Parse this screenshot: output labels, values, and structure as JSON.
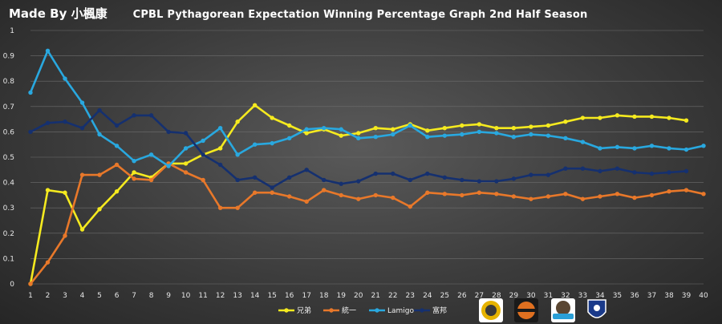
{
  "credit": "Made By 小楓康",
  "chart_data": {
    "type": "line",
    "title": "CPBL Pythagorean  Expectation Winning Percentage Graph 2nd Half Season",
    "xlabel": "",
    "ylabel": "",
    "x": [
      1,
      2,
      3,
      4,
      5,
      6,
      7,
      8,
      9,
      10,
      11,
      12,
      13,
      14,
      15,
      16,
      17,
      18,
      19,
      20,
      21,
      22,
      23,
      24,
      25,
      26,
      27,
      28,
      29,
      30,
      31,
      32,
      33,
      34,
      35,
      36,
      37,
      38,
      39,
      40
    ],
    "ylim": [
      0,
      1
    ],
    "yticks": [
      "0",
      "0.1",
      "0.2",
      "0.3",
      "0.4",
      "0.5",
      "0.6",
      "0.7",
      "0.8",
      "0.9",
      "1"
    ],
    "grid": true,
    "legend_position": "bottom",
    "series": [
      {
        "name": "兄弟",
        "color": "#f5ea1f",
        "values": [
          0,
          0.37,
          0.36,
          0.215,
          0.295,
          0.365,
          0.44,
          0.42,
          0.475,
          0.475,
          0.51,
          0.535,
          0.64,
          0.705,
          0.655,
          0.625,
          0.595,
          0.61,
          0.585,
          0.595,
          0.615,
          0.61,
          0.63,
          0.605,
          0.615,
          0.625,
          0.63,
          0.615,
          0.615,
          0.62,
          0.625,
          0.64,
          0.655,
          0.655,
          0.665,
          0.66,
          0.66,
          0.655,
          0.645,
          null
        ]
      },
      {
        "name": "統一",
        "color": "#e8782a",
        "values": [
          0,
          0.085,
          0.19,
          0.43,
          0.43,
          0.47,
          0.415,
          0.41,
          0.475,
          0.44,
          0.41,
          0.3,
          0.3,
          0.36,
          0.36,
          0.345,
          0.325,
          0.37,
          0.35,
          0.335,
          0.35,
          0.34,
          0.305,
          0.36,
          0.355,
          0.35,
          0.36,
          0.355,
          0.345,
          0.335,
          0.345,
          0.355,
          0.335,
          0.345,
          0.355,
          0.34,
          0.35,
          0.365,
          0.37,
          0.355
        ]
      },
      {
        "name": "Lamigo",
        "color": "#29a8df",
        "values": [
          0.755,
          0.92,
          0.81,
          0.715,
          0.59,
          0.545,
          0.485,
          0.51,
          0.465,
          0.535,
          0.565,
          0.615,
          0.51,
          0.55,
          0.555,
          0.575,
          0.61,
          0.615,
          0.61,
          0.575,
          0.58,
          0.59,
          0.625,
          0.58,
          0.585,
          0.59,
          0.6,
          0.595,
          0.58,
          0.59,
          0.585,
          0.575,
          0.56,
          0.535,
          0.54,
          0.535,
          0.545,
          0.535,
          0.53,
          0.545
        ]
      },
      {
        "name": "富邦",
        "color": "#15306f",
        "values": [
          0.6,
          0.635,
          0.64,
          0.615,
          0.685,
          0.625,
          0.665,
          0.665,
          0.6,
          0.595,
          0.51,
          0.47,
          0.41,
          0.42,
          0.38,
          0.42,
          0.45,
          0.41,
          0.395,
          0.405,
          0.435,
          0.435,
          0.41,
          0.435,
          0.42,
          0.41,
          0.405,
          0.405,
          0.415,
          0.43,
          0.43,
          0.455,
          0.455,
          0.445,
          0.455,
          0.44,
          0.435,
          0.44,
          0.445,
          null
        ]
      }
    ]
  },
  "team_logos": [
    {
      "team": "兄弟",
      "icon": "elephant-logo-icon",
      "color": "#e6b300"
    },
    {
      "team": "統一",
      "icon": "lion-logo-icon",
      "color": "#e07020"
    },
    {
      "team": "Lamigo",
      "icon": "monkey-logo-icon",
      "color": "#2a9fd6"
    },
    {
      "team": "富邦",
      "icon": "guardian-logo-icon",
      "color": "#1a3a8a"
    }
  ]
}
